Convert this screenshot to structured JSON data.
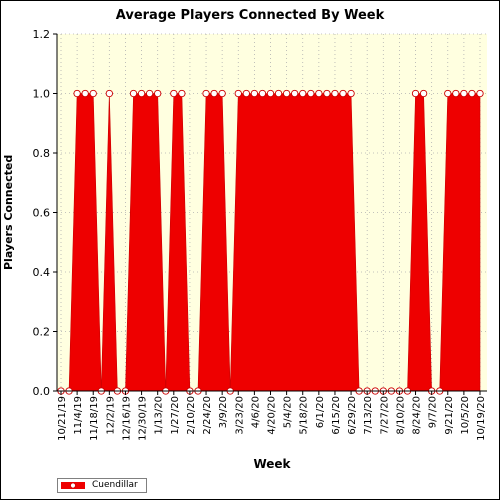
{
  "chart_data": {
    "type": "area",
    "title": "Average Players Connected By Week",
    "xlabel": "Week",
    "ylabel": "Players Connected",
    "ylim": [
      0,
      1.2
    ],
    "yticks": [
      "0.0",
      "0.2",
      "0.4",
      "0.6",
      "0.8",
      "1.0",
      "1.2"
    ],
    "grid": true,
    "legend_position": "bottom-left",
    "x": [
      "10/21/19",
      "10/28/19",
      "11/4/19",
      "11/11/19",
      "11/18/19",
      "11/25/19",
      "12/2/19",
      "12/9/19",
      "12/16/19",
      "12/23/19",
      "12/30/19",
      "1/6/20",
      "1/13/20",
      "1/20/20",
      "1/27/20",
      "2/3/20",
      "2/10/20",
      "2/17/20",
      "2/24/20",
      "3/2/20",
      "3/9/20",
      "3/16/20",
      "3/23/20",
      "3/30/20",
      "4/6/20",
      "4/13/20",
      "4/20/20",
      "4/27/20",
      "5/4/20",
      "5/11/20",
      "5/18/20",
      "5/25/20",
      "6/1/20",
      "6/8/20",
      "6/15/20",
      "6/22/20",
      "6/29/20",
      "7/6/20",
      "7/13/20",
      "7/20/20",
      "7/27/20",
      "8/3/20",
      "8/10/20",
      "8/17/20",
      "8/24/20",
      "8/31/20",
      "9/7/20",
      "9/14/20",
      "9/21/20",
      "9/28/20",
      "10/5/20",
      "10/12/20",
      "10/19/20"
    ],
    "x_tick_labels": [
      "10/21/19",
      "11/4/19",
      "11/18/19",
      "12/2/19",
      "12/16/19",
      "12/30/19",
      "1/13/20",
      "1/27/20",
      "2/10/20",
      "2/24/20",
      "3/9/20",
      "3/23/20",
      "4/6/20",
      "4/20/20",
      "5/4/20",
      "5/18/20",
      "6/1/20",
      "6/15/20",
      "6/29/20",
      "7/13/20",
      "7/27/20",
      "8/10/20",
      "8/24/20",
      "9/7/20",
      "9/21/20",
      "10/5/20",
      "10/19/20"
    ],
    "series": [
      {
        "name": "Cuendillar",
        "color": "#ee0000",
        "values": [
          0,
          0,
          1,
          1,
          1,
          0,
          1,
          0,
          0,
          1,
          1,
          1,
          1,
          0,
          1,
          1,
          0,
          0,
          1,
          1,
          1,
          0,
          1,
          1,
          1,
          1,
          1,
          1,
          1,
          1,
          1,
          1,
          1,
          1,
          1,
          1,
          1,
          0,
          0,
          0,
          0,
          0,
          0,
          0,
          1,
          1,
          0,
          0,
          1,
          1,
          1,
          1,
          1
        ]
      }
    ],
    "colors": {
      "plot_background": "#ffffe0",
      "fill": "#ee0000",
      "marker_fill": "#ffffff",
      "grid": "#b0b0b0"
    }
  }
}
